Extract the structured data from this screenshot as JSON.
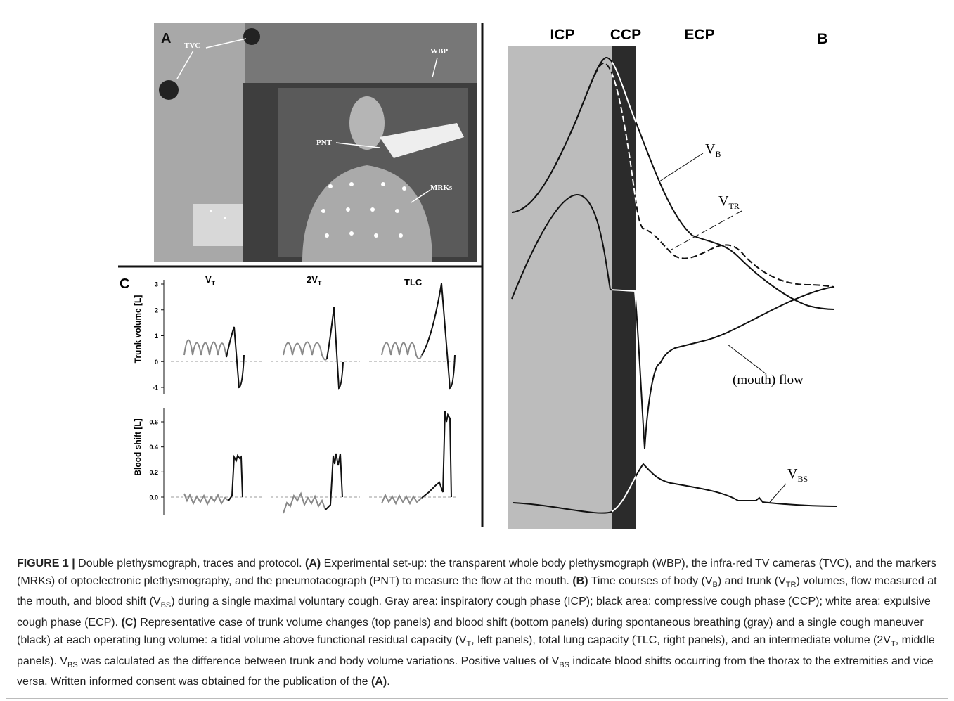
{
  "panel_a": {
    "label": "A",
    "annotations": {
      "tvc": "TVC",
      "wbp": "WBP",
      "pnt": "PNT",
      "mrks": "MRKs"
    }
  },
  "panel_b": {
    "label": "B",
    "phases": [
      "ICP",
      "CCP",
      "ECP"
    ],
    "traces": {
      "vb": {
        "base": "V",
        "sub": "B"
      },
      "vtr": {
        "base": "V",
        "sub": "TR"
      },
      "flow": "(mouth) flow",
      "vbs": {
        "base": "V",
        "sub": "BS"
      }
    }
  },
  "panel_c": {
    "label": "C",
    "columns": [
      {
        "base": "V",
        "sub": "T"
      },
      {
        "base": "2V",
        "sub": "T"
      },
      {
        "base": "TLC"
      }
    ],
    "top": {
      "ylabel": "Trunk volume [L]",
      "yticks": [
        "3",
        "2",
        "1",
        "0",
        "-1"
      ]
    },
    "bottom": {
      "ylabel": "Blood shift [L]",
      "yticks": [
        "0.6",
        "0.4",
        "0.2",
        "0.0"
      ]
    }
  },
  "caption": [
    {
      "text": "FIGURE 1 | ",
      "style": "bold"
    },
    {
      "text": "Double plethysmograph, traces and protocol. ",
      "style": "normal"
    },
    {
      "text": "(A)",
      "style": "bold"
    },
    {
      "text": " Experimental set-up: the transparent whole body plethysmograph (WBP), the infra-red TV cameras (TVC), and the markers (MRKs) of optoelectronic plethysmography, and the pneumotacograph (PNT) to measure the flow at the mouth. ",
      "style": "normal"
    },
    {
      "text": "(B)",
      "style": "bold"
    },
    {
      "text": " Time courses of body (V",
      "style": "normal"
    },
    {
      "text": "B",
      "style": "sub"
    },
    {
      "text": ") and trunk (V",
      "style": "normal"
    },
    {
      "text": "TR",
      "style": "sub"
    },
    {
      "text": ") volumes, flow measured at the mouth, and blood shift (V",
      "style": "normal"
    },
    {
      "text": "BS",
      "style": "sub"
    },
    {
      "text": ") during a single maximal voluntary cough. Gray area: inspiratory cough phase (ICP); black area: compressive cough phase (CCP); white area: expulsive cough phase (ECP). ",
      "style": "normal"
    },
    {
      "text": "(C)",
      "style": "bold"
    },
    {
      "text": " Representative case of trunk volume changes (top panels) and blood shift (bottom panels) during spontaneous breathing (gray) and a single cough maneuver (black) at each operating lung volume: a tidal volume above functional residual capacity (V",
      "style": "normal"
    },
    {
      "text": "T",
      "style": "sub"
    },
    {
      "text": ", left panels), total lung capacity (TLC, right panels), and an intermediate volume (2V",
      "style": "normal"
    },
    {
      "text": "T",
      "style": "sub"
    },
    {
      "text": ", middle panels). V",
      "style": "normal"
    },
    {
      "text": "BS",
      "style": "sub"
    },
    {
      "text": " was calculated as the difference between trunk and body volume variations. Positive values of V",
      "style": "normal"
    },
    {
      "text": "BS",
      "style": "sub"
    },
    {
      "text": " indicate blood shifts occurring from the thorax to the extremities and vice versa. Written informed consent was obtained for the publication of the ",
      "style": "normal"
    },
    {
      "text": "(A)",
      "style": "bold"
    },
    {
      "text": ".",
      "style": "normal"
    }
  ]
}
